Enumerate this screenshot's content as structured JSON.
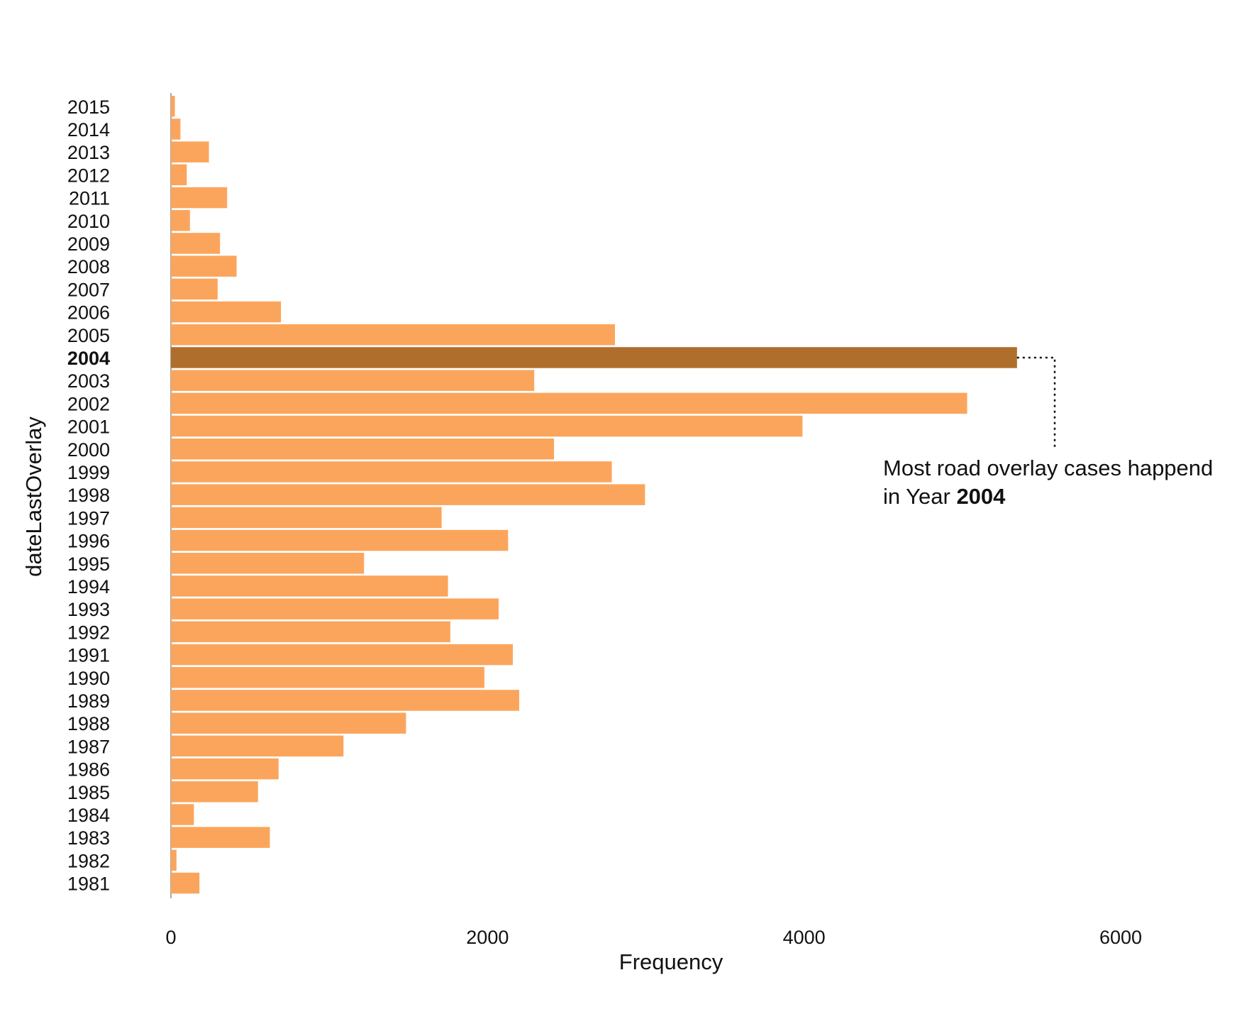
{
  "chart_data": {
    "type": "bar",
    "orientation": "horizontal",
    "xlabel": "Frequency",
    "ylabel": "dateLastOverlay",
    "xlim": [
      0,
      6500
    ],
    "x_ticks": [
      "0",
      "2000",
      "4000",
      "6000"
    ],
    "grid": false,
    "categories": [
      "2015",
      "2014",
      "2013",
      "2012",
      "2011",
      "2010",
      "2009",
      "2008",
      "2007",
      "2006",
      "2005",
      "2004",
      "2003",
      "2002",
      "2001",
      "2000",
      "1999",
      "1998",
      "1997",
      "1996",
      "1995",
      "1994",
      "1993",
      "1992",
      "1991",
      "1990",
      "1989",
      "1988",
      "1987",
      "1986",
      "1985",
      "1984",
      "1983",
      "1982",
      "1981"
    ],
    "values": [
      25,
      60,
      240,
      100,
      355,
      120,
      310,
      415,
      295,
      695,
      2805,
      5345,
      2295,
      5030,
      3990,
      2420,
      2785,
      2995,
      1710,
      2130,
      1220,
      1750,
      2070,
      1765,
      2160,
      1980,
      2200,
      1485,
      1090,
      680,
      550,
      145,
      625,
      35,
      180
    ],
    "highlight_category": "2004",
    "colors": {
      "bar": "#FBA55C",
      "highlight": "#B06E2C",
      "text": "#111111"
    },
    "annotation": {
      "line1": "Most road overlay cases happend",
      "line2_prefix": "in Year ",
      "line2_bold": "2004"
    }
  }
}
